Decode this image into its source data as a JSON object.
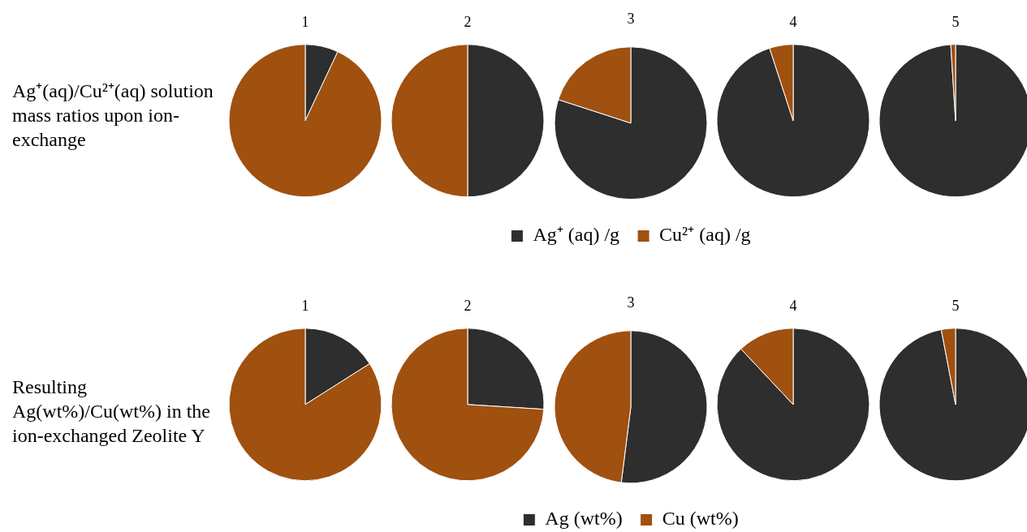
{
  "chart_data": [
    {
      "type": "pie",
      "categories": [
        "Ag⁺ (aq) /g",
        "Cu²⁺ (aq) /g"
      ],
      "colors": [
        "#2e2e2e",
        "#a0500f"
      ],
      "legend": "bottom",
      "annotations": [
        "Ag⁺(aq)/Cu²⁺(aq) solution mass ratios upon ion-exchange"
      ],
      "series": [
        {
          "name": "1",
          "values": [
            7,
            93
          ]
        },
        {
          "name": "2",
          "values": [
            50,
            50
          ]
        },
        {
          "name": "3",
          "values": [
            80,
            20
          ]
        },
        {
          "name": "4",
          "values": [
            95,
            5
          ]
        },
        {
          "name": "5",
          "values": [
            99,
            1
          ]
        }
      ]
    },
    {
      "type": "pie",
      "categories": [
        "Ag (wt%)",
        "Cu (wt%)"
      ],
      "colors": [
        "#2e2e2e",
        "#a0500f"
      ],
      "legend": "bottom",
      "annotations": [
        "Resulting Ag(wt%)/Cu(wt%) in the ion-exchanged Zeolite Y"
      ],
      "series": [
        {
          "name": "1",
          "values": [
            16,
            84
          ]
        },
        {
          "name": "2",
          "values": [
            26,
            74
          ]
        },
        {
          "name": "3",
          "values": [
            52,
            48
          ]
        },
        {
          "name": "4",
          "values": [
            88,
            12
          ]
        },
        {
          "name": "5",
          "values": [
            97,
            3
          ]
        }
      ]
    }
  ]
}
